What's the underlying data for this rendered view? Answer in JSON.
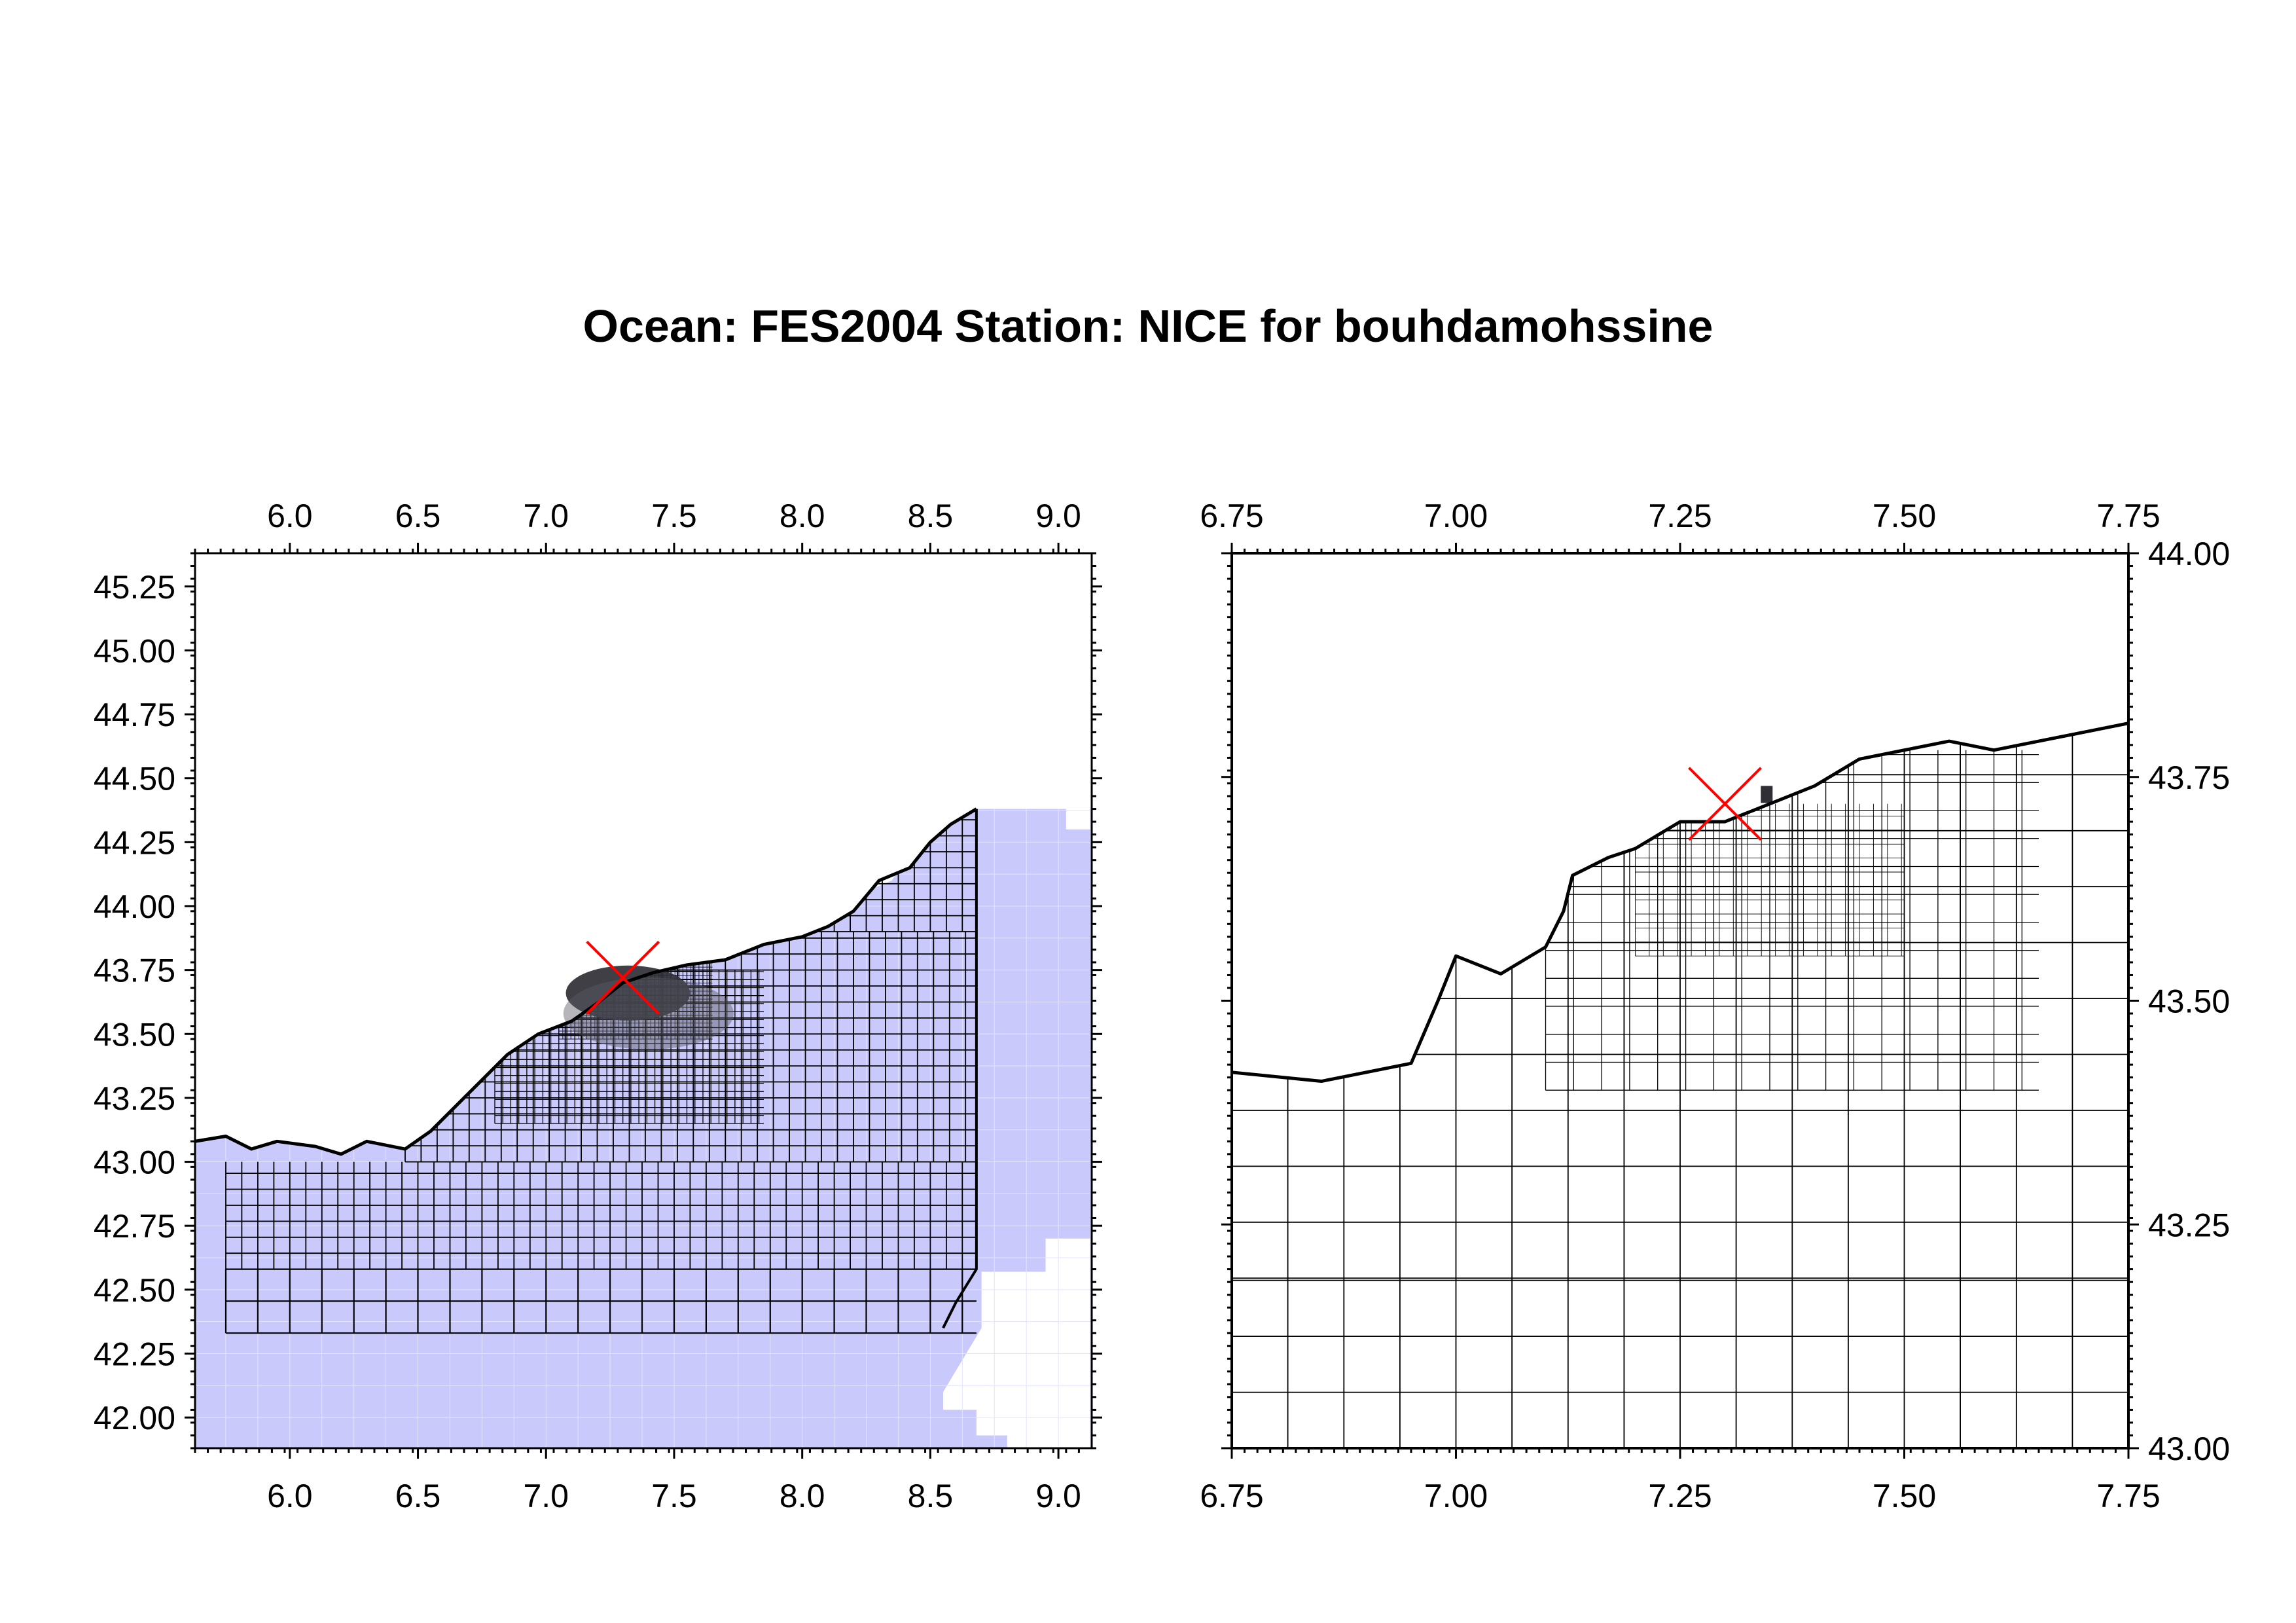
{
  "title": "Ocean: FES2004  Station: NICE  for bouhdamohssine",
  "colors": {
    "grid_fill": "#c9c9fb",
    "land": "#ffffff",
    "dense": "#2f2f35",
    "marker": "#ff0000",
    "frame": "#000000"
  },
  "chart_data": [
    {
      "type": "heatmap",
      "name": "",
      "lon_range": [
        5.63,
        9.13
      ],
      "lat_range": [
        41.88,
        45.38
      ],
      "lon_ticks": [
        "6.0",
        "6.5",
        "7.0",
        "7.5",
        "8.0",
        "8.5",
        "9.0"
      ],
      "lat_ticks": [
        "42.00",
        "42.25",
        "42.50",
        "42.75",
        "43.00",
        "43.25",
        "43.50",
        "43.75",
        "44.00",
        "44.25",
        "44.50",
        "44.75",
        "45.00",
        "45.25"
      ],
      "station": {
        "lon": 7.3,
        "lat": 43.72
      },
      "coastline": [
        [
          5.63,
          43.08
        ],
        [
          5.75,
          43.1
        ],
        [
          5.85,
          43.05
        ],
        [
          5.95,
          43.08
        ],
        [
          6.1,
          43.06
        ],
        [
          6.2,
          43.03
        ],
        [
          6.3,
          43.08
        ],
        [
          6.45,
          43.05
        ],
        [
          6.55,
          43.12
        ],
        [
          6.68,
          43.25
        ],
        [
          6.85,
          43.42
        ],
        [
          6.97,
          43.5
        ],
        [
          7.1,
          43.55
        ],
        [
          7.2,
          43.62
        ],
        [
          7.3,
          43.7
        ],
        [
          7.42,
          43.74
        ],
        [
          7.55,
          43.77
        ],
        [
          7.7,
          43.79
        ],
        [
          7.85,
          43.85
        ],
        [
          8.0,
          43.88
        ],
        [
          8.1,
          43.92
        ],
        [
          8.2,
          43.98
        ],
        [
          8.3,
          44.1
        ],
        [
          8.42,
          44.15
        ],
        [
          8.5,
          44.25
        ],
        [
          8.58,
          44.32
        ],
        [
          8.68,
          44.38
        ]
      ],
      "east_coast": [
        [
          8.68,
          44.38
        ],
        [
          8.68,
          42.58
        ],
        [
          8.6,
          42.45
        ],
        [
          8.55,
          42.35
        ]
      ],
      "blue_region": [
        [
          5.63,
          43.2
        ],
        [
          5.65,
          43.2
        ],
        [
          5.75,
          43.18
        ],
        [
          5.75,
          43.1
        ],
        [
          6.3,
          43.18
        ],
        [
          6.5,
          43.2
        ],
        [
          6.7,
          43.45
        ],
        [
          6.95,
          43.57
        ],
        [
          7.42,
          43.82
        ],
        [
          7.7,
          43.82
        ],
        [
          8.35,
          44.1
        ],
        [
          8.55,
          44.43
        ],
        [
          9.03,
          44.43
        ],
        [
          9.03,
          44.3
        ],
        [
          9.13,
          44.3
        ],
        [
          9.13,
          42.7
        ],
        [
          8.95,
          42.7
        ],
        [
          8.95,
          42.57
        ],
        [
          8.7,
          42.57
        ],
        [
          8.7,
          42.35
        ],
        [
          8.55,
          42.1
        ],
        [
          8.55,
          42.03
        ],
        [
          8.68,
          42.03
        ],
        [
          8.68,
          41.93
        ],
        [
          8.8,
          41.93
        ],
        [
          8.8,
          41.88
        ],
        [
          5.63,
          41.88
        ]
      ],
      "mesh_cells": [
        {
          "lon0": 5.75,
          "lon1": 8.68,
          "lat0": 42.33,
          "lat1": 42.58,
          "step": 0.125
        },
        {
          "lon0": 5.75,
          "lon1": 8.68,
          "lat0": 42.58,
          "lat1": 43.0,
          "step": 0.0625
        },
        {
          "lon0": 6.45,
          "lon1": 8.68,
          "lat0": 43.0,
          "lat1": 43.9,
          "step": 0.0625
        },
        {
          "lon0": 6.8,
          "lon1": 7.85,
          "lat0": 43.15,
          "lat1": 43.75,
          "step": 0.03125
        },
        {
          "lon0": 7.05,
          "lon1": 7.65,
          "lat0": 43.48,
          "lat1": 43.78,
          "step": 0.015625
        },
        {
          "lon0": 8.0,
          "lon1": 8.68,
          "lat0": 43.9,
          "lat1": 44.38,
          "step": 0.0625
        }
      ]
    },
    {
      "type": "heatmap",
      "name": "",
      "lon_range": [
        6.75,
        7.75
      ],
      "lat_range": [
        43.0,
        44.0
      ],
      "lon_ticks": [
        "6.75",
        "7.00",
        "7.25",
        "7.50",
        "7.75"
      ],
      "lat_ticks": [
        "43.00",
        "43.25",
        "43.50",
        "43.75",
        "44.00"
      ],
      "station": {
        "lon": 7.3,
        "lat": 43.72
      },
      "coastline": [
        [
          6.75,
          43.42
        ],
        [
          6.85,
          43.41
        ],
        [
          6.95,
          43.43
        ],
        [
          6.98,
          43.5
        ],
        [
          7.0,
          43.55
        ],
        [
          7.05,
          43.53
        ],
        [
          7.1,
          43.56
        ],
        [
          7.12,
          43.6
        ],
        [
          7.13,
          43.64
        ],
        [
          7.17,
          43.66
        ],
        [
          7.2,
          43.67
        ],
        [
          7.25,
          43.7
        ],
        [
          7.3,
          43.7
        ],
        [
          7.35,
          43.72
        ],
        [
          7.4,
          43.74
        ],
        [
          7.45,
          43.77
        ],
        [
          7.5,
          43.78
        ],
        [
          7.55,
          43.79
        ],
        [
          7.6,
          43.78
        ],
        [
          7.65,
          43.79
        ],
        [
          7.7,
          43.8
        ],
        [
          7.75,
          43.81
        ]
      ],
      "blue_region": [],
      "mesh_cells": [
        {
          "lon0": 6.75,
          "lon1": 7.75,
          "lat0": 43.0,
          "lat1": 43.19,
          "step": 0.0625
        },
        {
          "lon0": 6.75,
          "lon1": 7.75,
          "lat0": 43.19,
          "lat1": 43.81,
          "step": 0.0625
        },
        {
          "lon0": 7.1,
          "lon1": 7.65,
          "lat0": 43.4,
          "lat1": 43.78,
          "step": 0.03125
        },
        {
          "lon0": 7.2,
          "lon1": 7.5,
          "lat0": 43.55,
          "lat1": 43.72,
          "step": 0.015625
        }
      ]
    }
  ]
}
